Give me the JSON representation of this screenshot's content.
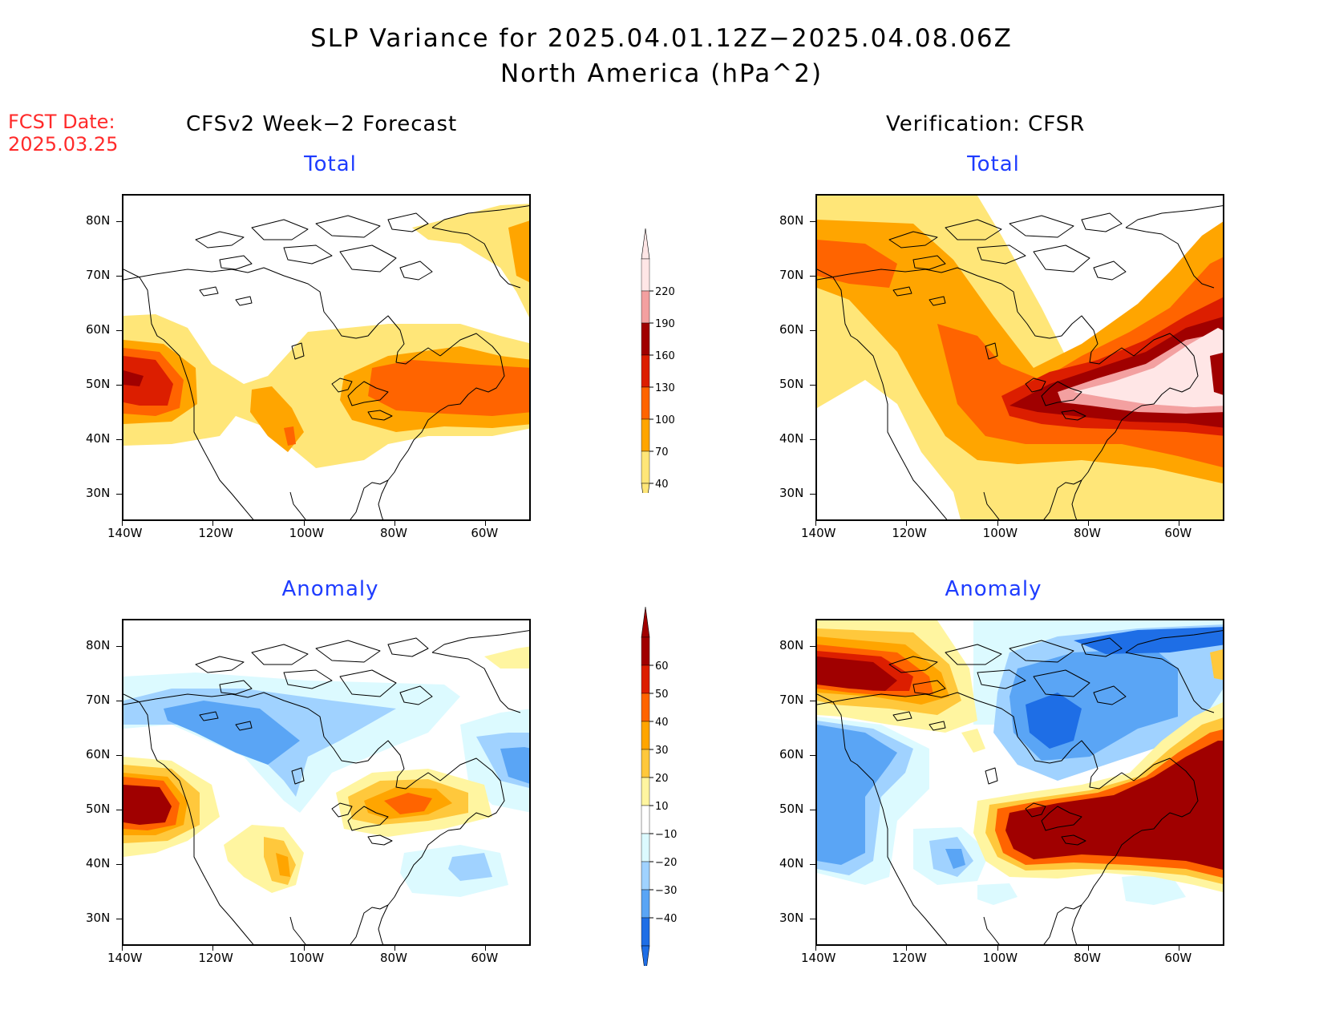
{
  "figure": {
    "title_line1": "SLP Variance for 2025.04.01.12Z−2025.04.08.06Z",
    "title_line2": "North America (hPa^2)",
    "fcst_label": "FCST Date:",
    "fcst_date": "2025.03.25",
    "left_column_title": "CFSv2 Week−2 Forecast",
    "right_column_title": "Verification: CFSR"
  },
  "panels": {
    "top_left_title": "Total",
    "top_right_title": "Total",
    "bottom_left_title": "Anomaly",
    "bottom_right_title": "Anomaly"
  },
  "axes": {
    "lat_labels": [
      "80N",
      "70N",
      "60N",
      "50N",
      "40N",
      "30N"
    ],
    "lon_labels": [
      "140W",
      "120W",
      "100W",
      "80W",
      "60W"
    ]
  },
  "colorbars": {
    "total": {
      "levels": [
        "220",
        "190",
        "160",
        "130",
        "100",
        "70",
        "40"
      ],
      "colors": [
        "#ffe6e6",
        "#f3a0a0",
        "#a00000",
        "#dc1e00",
        "#ff6400",
        "#ffa500",
        "#ffe678"
      ]
    },
    "anomaly": {
      "levels": [
        "60",
        "50",
        "40",
        "30",
        "20",
        "10",
        "−10",
        "−20",
        "−30",
        "−40"
      ],
      "colors": [
        "#a00000",
        "#dc1e00",
        "#ff6400",
        "#ffa500",
        "#ffc83c",
        "#fff5a0",
        "#ffffff",
        "#dcfaff",
        "#a0d2ff",
        "#5aa5f5",
        "#1e6ee6"
      ]
    }
  },
  "map_colors": {
    "c40": "#ffe678",
    "c70": "#ffa500",
    "c100": "#ff6400",
    "c130": "#dc1e00",
    "c160": "#a00000",
    "c190": "#f3a0a0",
    "c220": "#ffe6e6",
    "a10": "#fff5a0",
    "a20": "#ffc83c",
    "a30": "#ffa500",
    "a40": "#ff6400",
    "a50": "#dc1e00",
    "a60": "#a00000",
    "n10": "#dcfaff",
    "n20": "#a0d2ff",
    "n30": "#5aa5f5",
    "n40": "#1e6ee6"
  }
}
